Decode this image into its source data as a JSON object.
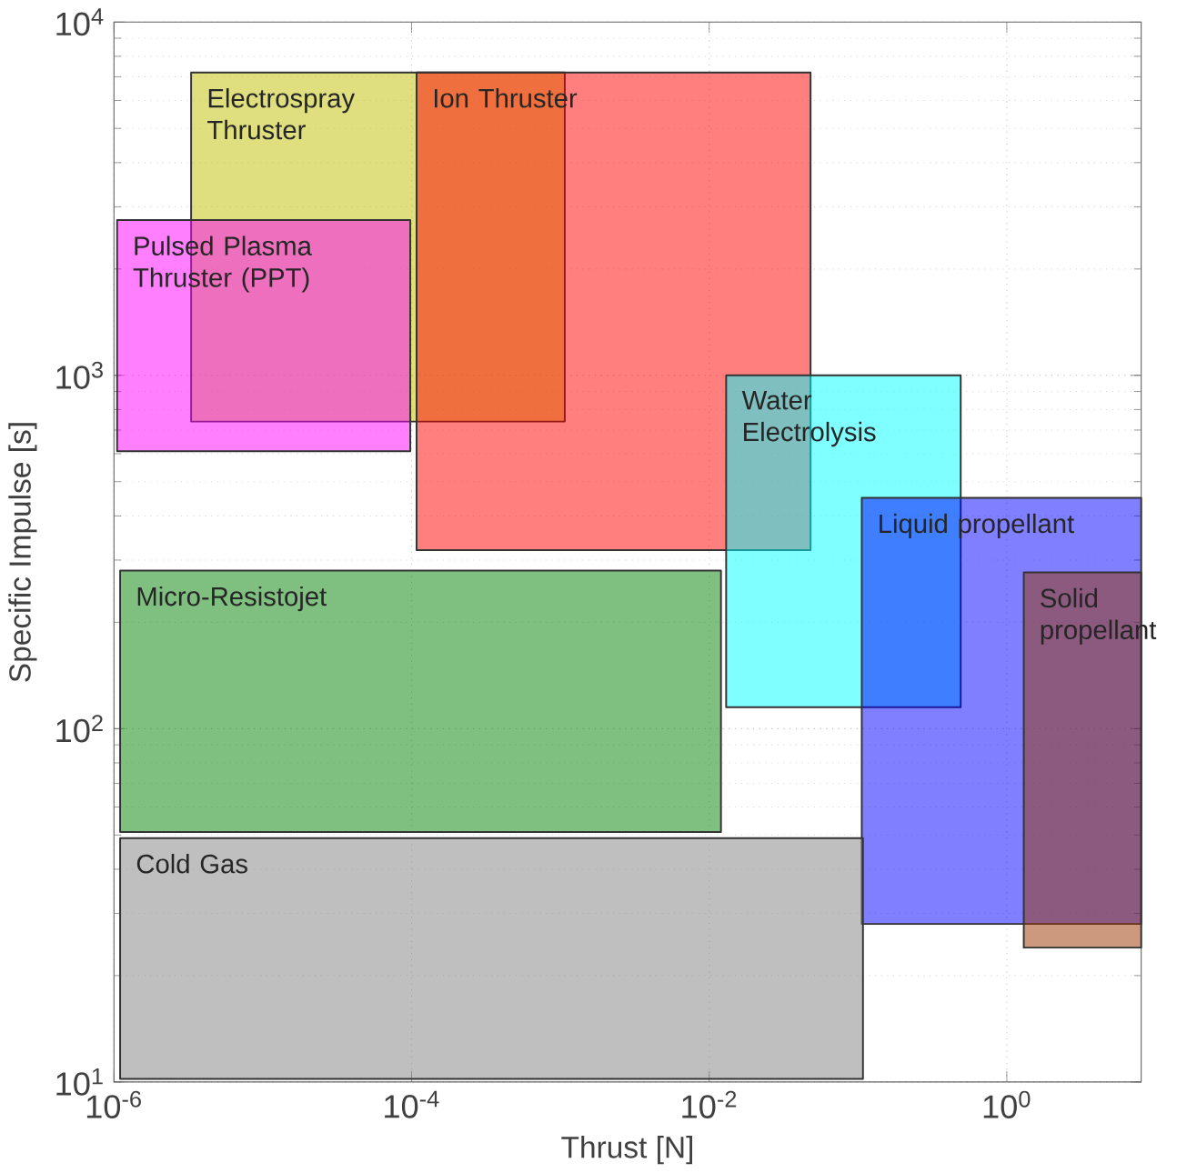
{
  "chart_data": {
    "type": "area",
    "xlabel": "Thrust [N]",
    "ylabel": "Specific Impulse [s]",
    "log": "xy",
    "grid": true,
    "xlim": [
      1e-06,
      8
    ],
    "ylim": [
      10,
      10000
    ],
    "xticks": [
      {
        "value": 1e-06,
        "label": "10$^{-6}$"
      },
      {
        "value": 0.0001,
        "label": "10$^{-4}$"
      },
      {
        "value": 0.01,
        "label": "10$^{-2}$"
      },
      {
        "value": 1,
        "label": "10$^{0}$"
      }
    ],
    "yticks": [
      {
        "value": 10,
        "label": "10$^{1}$"
      },
      {
        "value": 100,
        "label": "10$^{2}$"
      },
      {
        "value": 1000,
        "label": "10$^{3}$"
      },
      {
        "value": 10000,
        "label": "10$^{4}$"
      }
    ],
    "series": [
      {
        "name": "Electrospray Thruster",
        "color": "#bfbf00",
        "x": [
          3.3e-06,
          0.00107,
          0.00107,
          3.3e-06,
          3.3e-06
        ],
        "values": [
          740,
          740,
          7200,
          7200,
          740
        ]
      },
      {
        "name": "Ion Thruster",
        "color": "#ff0000",
        "x": [
          0.000108,
          0.048,
          0.048,
          0.000108,
          0.000108
        ],
        "values": [
          320,
          320,
          7200,
          7200,
          320
        ]
      },
      {
        "name": "Pulsed Plasma Thruster (PPT)",
        "color": "#ff00ff",
        "x": [
          1.05e-06,
          9.8e-05,
          9.8e-05,
          1.05e-06,
          1.05e-06
        ],
        "values": [
          610,
          610,
          2750,
          2750,
          610
        ]
      },
      {
        "name": "Water Electrolysis",
        "color": "#00ffff",
        "x": [
          0.013,
          0.49,
          0.49,
          0.013,
          0.013
        ],
        "values": [
          115,
          115,
          1000,
          1000,
          115
        ]
      },
      {
        "name": "Liquid propellant",
        "color": "#0000ff",
        "x": [
          0.106,
          8,
          8,
          0.106,
          0.106
        ],
        "values": [
          28,
          28,
          450,
          450,
          28
        ]
      },
      {
        "name": "Solid propellant",
        "color": "#993300",
        "x": [
          1.3,
          8,
          8,
          1.3,
          1.3
        ],
        "values": [
          24,
          24,
          277,
          277,
          24
        ]
      },
      {
        "name": "Micro-Resistojet",
        "color": "#008000",
        "x": [
          1.1e-06,
          0.012,
          0.012,
          1.1e-06,
          1.1e-06
        ],
        "values": [
          51,
          51,
          280,
          280,
          51
        ]
      },
      {
        "name": "Cold Gas",
        "color": "#808080",
        "x": [
          1.1e-06,
          0.108,
          0.108,
          1.1e-06,
          1.1e-06
        ],
        "values": [
          10.2,
          10.2,
          49,
          49,
          10.2
        ]
      }
    ]
  }
}
